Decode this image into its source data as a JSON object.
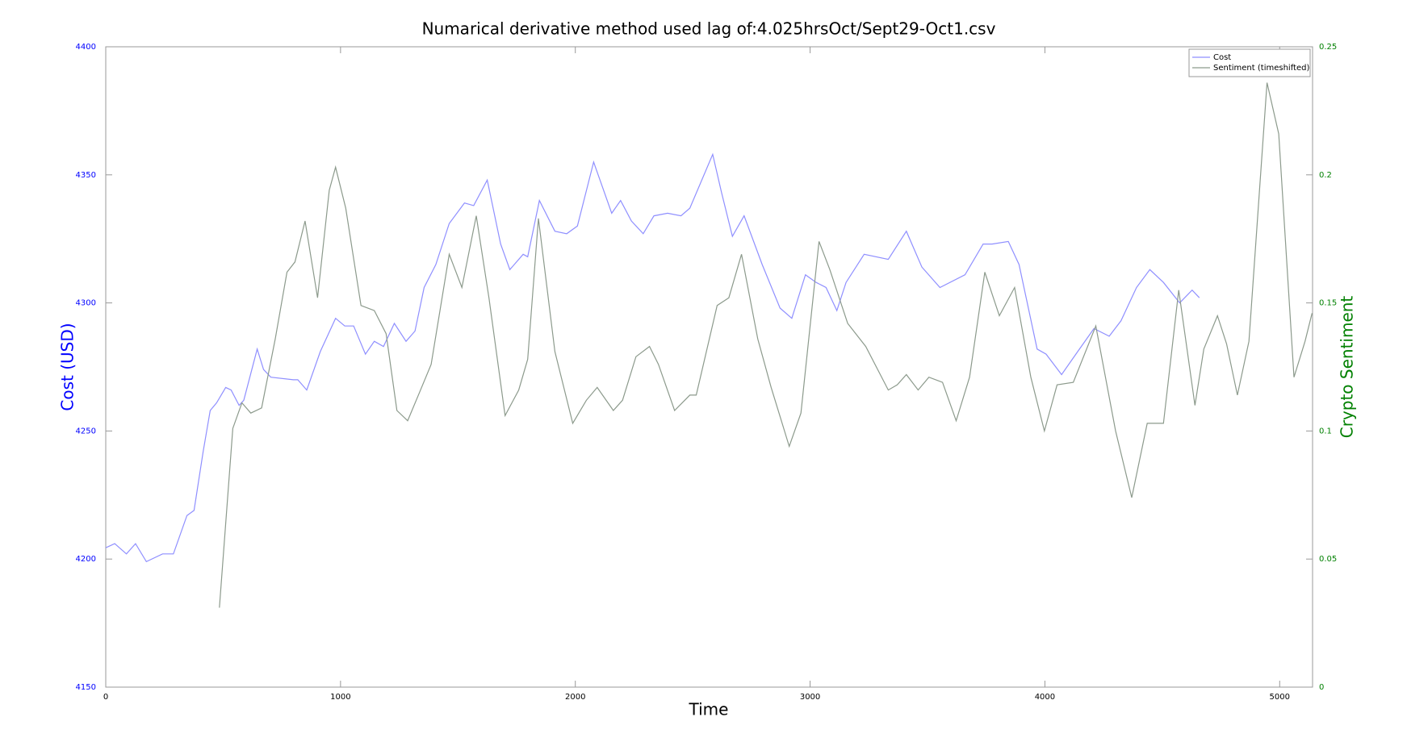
{
  "chart_data": {
    "type": "line",
    "title": "Numarical derivative method used lag of:4.025hrsOct/Sept29-Oct1.csv",
    "xlabel": "Time",
    "ylabel": "Cost (USD)",
    "y2label": "Crypto Sentiment",
    "y_axis_color": "#0000ff",
    "y2_axis_color": "#008000",
    "xlim": [
      0,
      5140
    ],
    "xticks": [
      0,
      1000,
      2000,
      3000,
      4000,
      5000
    ],
    "ylim": [
      4150,
      4400
    ],
    "yticks": [
      4150,
      4200,
      4250,
      4300,
      4350,
      4400
    ],
    "y2lim": [
      0,
      0.25
    ],
    "y2ticks": [
      0,
      0.05,
      0.1,
      0.15,
      0.2,
      0.25
    ],
    "legend": "upper right",
    "series": [
      {
        "name": "Cost",
        "color": "#8f8fff",
        "x": [
          0,
          38,
          88,
          127,
          173,
          242,
          288,
          346,
          376,
          415,
          445,
          472,
          511,
          534,
          568,
          588,
          645,
          672,
          703,
          799,
          818,
          856,
          914,
          979,
          1018,
          1056,
          1106,
          1144,
          1183,
          1229,
          1279,
          1317,
          1356,
          1406,
          1463,
          1528,
          1567,
          1625,
          1682,
          1721,
          1778,
          1797,
          1847,
          1913,
          1963,
          2009,
          2078,
          2155,
          2193,
          2239,
          2289,
          2335,
          2393,
          2450,
          2488,
          2585,
          2623,
          2669,
          2719,
          2796,
          2872,
          2922,
          2980,
          3026,
          3068,
          3114,
          3153,
          3230,
          3333,
          3410,
          3476,
          3553,
          3660,
          3737,
          3775,
          3844,
          3890,
          3967,
          4005,
          4071,
          4140,
          4209,
          4274,
          4324,
          4390,
          4447,
          4505,
          4574,
          4627,
          4658
        ],
        "values": [
          4204.4,
          4206,
          4202,
          4206,
          4199,
          4202,
          4202,
          4217,
          4219,
          4242,
          4258,
          4261,
          4267,
          4266,
          4260,
          4262,
          4282,
          4274,
          4271,
          4270,
          4270,
          4266,
          4281,
          4294,
          4291,
          4291,
          4280,
          4285,
          4283,
          4292,
          4285,
          4289,
          4306,
          4315,
          4331,
          4339,
          4338,
          4348,
          4323,
          4313,
          4319,
          4318,
          4340,
          4328,
          4327,
          4330,
          4355,
          4335,
          4340,
          4332,
          4327,
          4334,
          4335,
          4334,
          4337,
          4358,
          4343,
          4326,
          4334,
          4315,
          4298,
          4294,
          4311,
          4308,
          4306,
          4297,
          4308,
          4319,
          4317,
          4328,
          4314,
          4306,
          4311,
          4323,
          4323,
          4324,
          4315,
          4282,
          4280,
          4272,
          4281,
          4290,
          4287,
          4293,
          4306,
          4313,
          4308,
          4300,
          4305,
          4302
        ]
      },
      {
        "name": "Sentiment (timeshifted)",
        "color": "#8c9a8c",
        "axis": "y2",
        "x": [
          484,
          541,
          580,
          618,
          664,
          722,
          772,
          806,
          849,
          902,
          952,
          979,
          1022,
          1087,
          1144,
          1194,
          1240,
          1286,
          1336,
          1386,
          1463,
          1517,
          1578,
          1632,
          1701,
          1759,
          1797,
          1843,
          1913,
          1989,
          2047,
          2093,
          2162,
          2201,
          2258,
          2316,
          2354,
          2423,
          2488,
          2515,
          2604,
          2654,
          2708,
          2777,
          2834,
          2911,
          2961,
          3038,
          3084,
          3160,
          3237,
          3333,
          3371,
          3410,
          3460,
          3506,
          3564,
          3622,
          3679,
          3744,
          3806,
          3871,
          3940,
          3998,
          4052,
          4121,
          4217,
          4301,
          4370,
          4436,
          4505,
          4570,
          4639,
          4677,
          4735,
          4774,
          4820,
          4869,
          4946,
          4996,
          5061,
          5108,
          5138
        ],
        "values": [
          0.031,
          0.101,
          0.111,
          0.107,
          0.109,
          0.136,
          0.162,
          0.166,
          0.182,
          0.152,
          0.194,
          0.203,
          0.187,
          0.149,
          0.147,
          0.138,
          0.108,
          0.104,
          0.115,
          0.126,
          0.169,
          0.156,
          0.184,
          0.152,
          0.106,
          0.116,
          0.128,
          0.183,
          0.131,
          0.103,
          0.112,
          0.117,
          0.108,
          0.112,
          0.129,
          0.133,
          0.126,
          0.108,
          0.114,
          0.114,
          0.149,
          0.152,
          0.169,
          0.136,
          0.117,
          0.094,
          0.107,
          0.174,
          0.163,
          0.142,
          0.133,
          0.116,
          0.118,
          0.122,
          0.116,
          0.121,
          0.119,
          0.104,
          0.121,
          0.162,
          0.145,
          0.156,
          0.121,
          0.1,
          0.118,
          0.119,
          0.141,
          0.1,
          0.074,
          0.103,
          0.103,
          0.155,
          0.11,
          0.132,
          0.145,
          0.134,
          0.114,
          0.135,
          0.236,
          0.216,
          0.121,
          0.135,
          0.146
        ]
      }
    ]
  }
}
